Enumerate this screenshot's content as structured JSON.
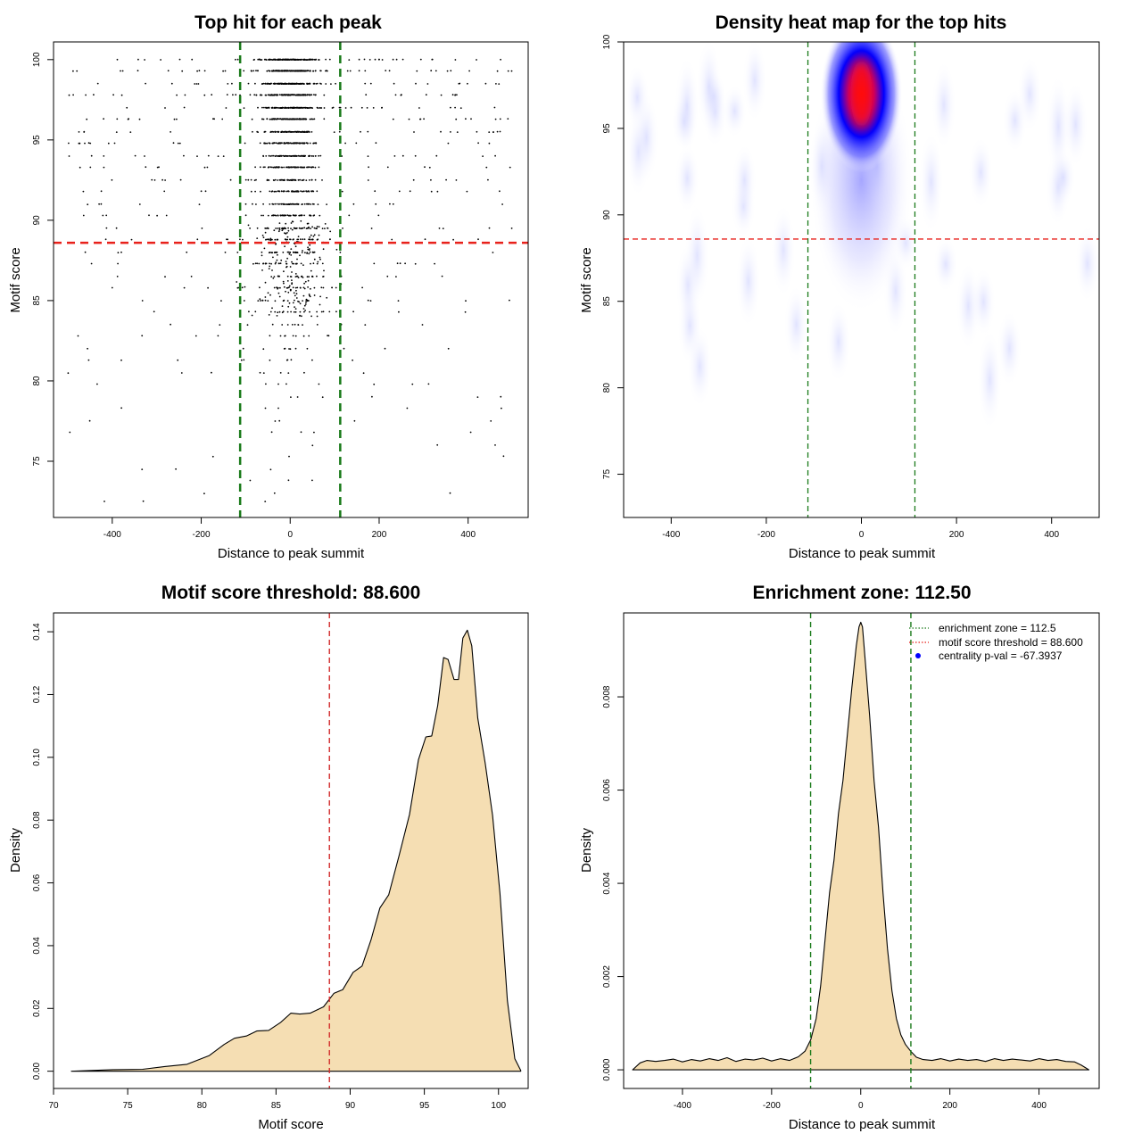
{
  "chart_data": [
    {
      "type": "scatter",
      "title": "Top hit for each peak",
      "xlabel": "Distance to peak summit",
      "ylabel": "Motif score",
      "xlim": [
        -532,
        535
      ],
      "ylim": [
        71.5,
        101.1
      ],
      "xticks": [
        -400,
        -200,
        0,
        200,
        400
      ],
      "yticks": [
        75,
        80,
        85,
        90,
        95,
        100
      ],
      "points_description_values": {
        "x_range": [
          -500,
          500
        ],
        "score_levels": [
          100,
          99.3,
          98.5,
          97.8,
          97.0,
          96.3,
          95.5,
          94.8,
          94.0,
          93.3,
          92.5,
          91.8,
          91.0,
          90.3,
          89.5,
          88.8,
          88.0,
          87.3,
          86.5,
          85.8,
          85.0,
          84.3,
          83.5,
          82.8,
          82.0,
          81.3,
          80.5,
          79.8,
          79.0,
          78.3,
          77.5,
          76.8,
          76.0,
          75.3,
          74.5,
          73.8,
          73.0,
          72.5
        ]
      },
      "vlines": [
        -112.5,
        112.5
      ],
      "hline": 88.6,
      "vline_color": "#1a7a1a",
      "hline_color": "#e8211b"
    },
    {
      "type": "heatmap",
      "title": "Density heat map for the top hits",
      "xlabel": "Distance to peak summit",
      "ylabel": "Motif score",
      "xlim": [
        -500,
        500
      ],
      "ylim": [
        72.5,
        100
      ],
      "xticks": [
        -400,
        -200,
        0,
        200,
        400
      ],
      "yticks": [
        75,
        80,
        85,
        90,
        95,
        100
      ],
      "hotspot": {
        "x": 0,
        "y": 97.0
      },
      "vlines": [
        -112.5,
        112.5
      ],
      "hline": 88.6,
      "colors": [
        "#ffffff",
        "#0000ff",
        "#ff0000"
      ]
    },
    {
      "type": "area",
      "title": "Motif score threshold: 88.600",
      "xlabel": "Motif score",
      "ylabel": "Density",
      "xlim": [
        70,
        102
      ],
      "ylim": [
        -0.0055,
        0.146
      ],
      "xticks": [
        70,
        75,
        80,
        85,
        90,
        95,
        100
      ],
      "yticks": [
        0.0,
        0.02,
        0.04,
        0.06,
        0.08,
        0.1,
        0.12,
        0.14
      ],
      "ytick_labels": [
        "0.00",
        "0.02",
        "0.04",
        "0.06",
        "0.08",
        "0.10",
        "0.12",
        "0.14"
      ],
      "x": [
        71.2,
        74,
        76,
        77.5,
        79,
        80.5,
        81.5,
        82.2,
        83,
        83.7,
        84.5,
        85.3,
        86.0,
        86.6,
        87.3,
        88.2,
        88.9,
        89.5,
        90.2,
        90.8,
        91.4,
        92.0,
        92.6,
        93.3,
        94.0,
        94.6,
        95.1,
        95.5,
        95.9,
        96.3,
        96.6,
        97.0,
        97.3,
        97.6,
        97.9,
        98.2,
        98.6,
        99.1,
        99.6,
        100.1,
        100.6,
        101.1,
        101.5
      ],
      "y": [
        0.0,
        0.0005,
        0.0006,
        0.0015,
        0.0022,
        0.005,
        0.0085,
        0.0105,
        0.0112,
        0.0128,
        0.013,
        0.0155,
        0.0185,
        0.0182,
        0.0185,
        0.0205,
        0.0248,
        0.026,
        0.0315,
        0.0335,
        0.0418,
        0.052,
        0.0562,
        0.0688,
        0.0818,
        0.0992,
        0.1065,
        0.1068,
        0.1165,
        0.1318,
        0.1312,
        0.1248,
        0.1248,
        0.138,
        0.1405,
        0.1355,
        0.1125,
        0.0982,
        0.0815,
        0.0566,
        0.0225,
        0.004,
        0.0002
      ],
      "vline": 88.6,
      "fill": "#f5deb3",
      "vline_color": "#d12a2a"
    },
    {
      "type": "area",
      "title": "Enrichment zone: 112.50",
      "xlabel": "Distance to peak summit",
      "ylabel": "Density",
      "xlim": [
        -532,
        535
      ],
      "ylim": [
        -0.0004,
        0.0098
      ],
      "xticks": [
        -400,
        -200,
        0,
        200,
        400
      ],
      "yticks": [
        0.0,
        0.002,
        0.004,
        0.006,
        0.008
      ],
      "ytick_labels": [
        "0.000",
        "0.002",
        "0.004",
        "0.006",
        "0.008"
      ],
      "x": [
        -512,
        -495,
        -480,
        -460,
        -440,
        -420,
        -400,
        -380,
        -360,
        -340,
        -320,
        -300,
        -280,
        -260,
        -240,
        -220,
        -200,
        -180,
        -160,
        -140,
        -125,
        -112,
        -100,
        -90,
        -80,
        -70,
        -60,
        -50,
        -40,
        -30,
        -20,
        -10,
        -4,
        0,
        4,
        10,
        20,
        30,
        40,
        50,
        60,
        70,
        80,
        90,
        100,
        112,
        125,
        140,
        160,
        180,
        200,
        220,
        240,
        260,
        280,
        300,
        320,
        340,
        360,
        380,
        400,
        420,
        440,
        460,
        480,
        495,
        512
      ],
      "y": [
        0.0,
        0.00015,
        0.0002,
        0.00018,
        0.0002,
        0.00023,
        0.00017,
        0.00022,
        0.00019,
        0.00024,
        0.0002,
        0.00026,
        0.00018,
        0.00023,
        0.00021,
        0.00025,
        0.00019,
        0.00024,
        0.0002,
        0.00028,
        0.0004,
        0.00065,
        0.0011,
        0.0018,
        0.0028,
        0.0038,
        0.0045,
        0.0055,
        0.0062,
        0.0072,
        0.0082,
        0.0091,
        0.0095,
        0.0096,
        0.0095,
        0.0088,
        0.0076,
        0.0062,
        0.0052,
        0.0038,
        0.0026,
        0.0017,
        0.0011,
        0.00075,
        0.00055,
        0.0004,
        0.00027,
        0.00022,
        0.0002,
        0.00024,
        0.00019,
        0.00023,
        0.0002,
        0.00022,
        0.00018,
        0.00024,
        0.0002,
        0.00023,
        0.00021,
        0.00019,
        0.00024,
        0.0002,
        0.00022,
        0.00018,
        0.00017,
        0.0001,
        0.0
      ],
      "vlines": [
        -112.5,
        112.5
      ],
      "fill": "#f5deb3",
      "vline_color": "#1a7a1a",
      "legend": {
        "position": "top-right",
        "entries": [
          {
            "label": "enrichment zone = 112.5",
            "kind": "dotted-line",
            "color": "#1a7a1a"
          },
          {
            "label": "motif score threshold = 88.600",
            "kind": "dotted-line",
            "color": "#e8211b"
          },
          {
            "label": "centrality p-val = -67.3937",
            "kind": "dot",
            "color": "#0000ff"
          }
        ]
      }
    }
  ]
}
